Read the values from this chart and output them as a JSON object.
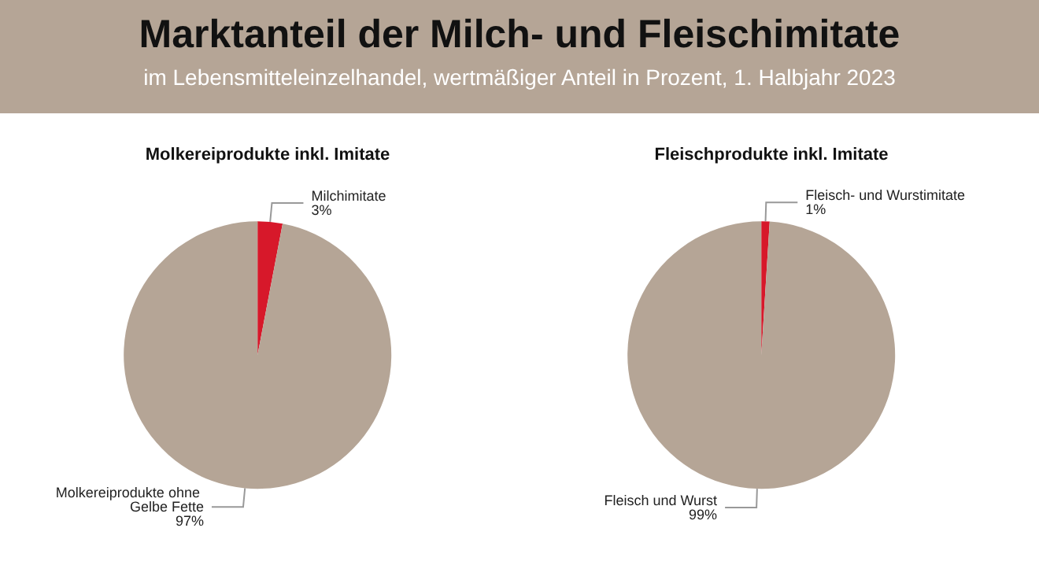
{
  "chart_data": [
    {
      "type": "other",
      "title": "Marktanteil der Milch- und Fleischimitate",
      "subtitle": "im Lebensmitteleinzelhandel, wertmäßiger Anteil in Prozent, 1. Halbjahr 2023"
    },
    {
      "type": "pie",
      "title": "Molkereiprodukte inkl. Imitate",
      "categories": [
        "Milchimitate",
        "Molkereiprodukte ohne Gelbe Fette"
      ],
      "values": [
        3,
        97
      ],
      "value_labels": [
        "3%",
        "97%"
      ],
      "colors": [
        "#d7182a",
        "#b5a596"
      ]
    },
    {
      "type": "pie",
      "title": "Fleischprodukte inkl. Imitate",
      "categories": [
        "Fleisch- und Wurstimitate",
        "Fleisch und Wurst"
      ],
      "values": [
        1,
        99
      ],
      "value_labels": [
        "1%",
        "99%"
      ],
      "colors": [
        "#d7182a",
        "#b5a596"
      ]
    }
  ]
}
